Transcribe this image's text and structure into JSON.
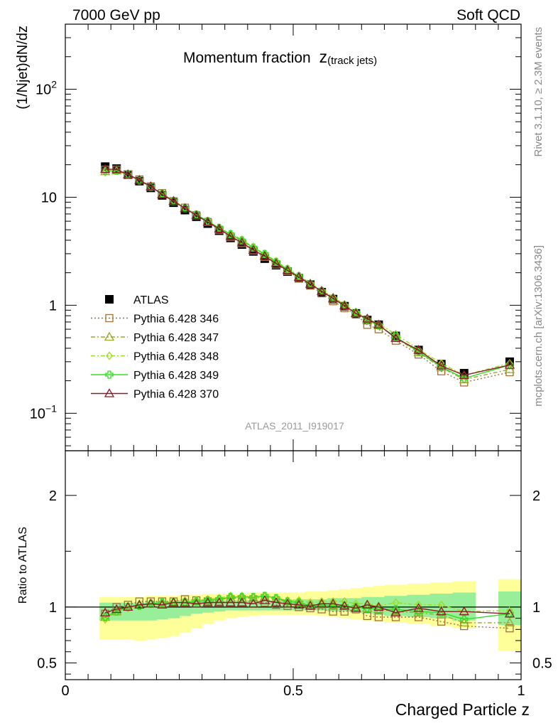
{
  "header": {
    "left": "7000 GeV pp",
    "right": "Soft QCD",
    "side_top": "Rivet 3.1.10, ≥ 2.3M events",
    "side_bottom": "mcplots.cern.ch [arXiv:1306.3436]"
  },
  "chart_data": [
    {
      "type": "scatter",
      "title": "Momentum fraction",
      "title_sub": "z",
      "title_subscript": "(track jets)",
      "ylabel": "(1/Njet)dN/dz",
      "ylog": true,
      "ylim": [
        0.045,
        400
      ],
      "xlim": [
        0,
        1.0
      ],
      "ytick_labels": [
        "10",
        "2",
        "10",
        "1",
        "10",
        "−1"
      ],
      "yticks": [
        {
          "base": "10",
          "exp": "2"
        },
        {
          "base": "10",
          "exp": ""
        },
        {
          "base": "1",
          "exp": ""
        },
        {
          "base": "10",
          "exp": "−1"
        }
      ],
      "watermark": "ATLAS_2011_I919017",
      "legend_position": "middle-left",
      "x": [
        0.0875,
        0.1125,
        0.1375,
        0.1625,
        0.1875,
        0.2125,
        0.2375,
        0.2625,
        0.2875,
        0.3125,
        0.3375,
        0.3625,
        0.3875,
        0.4125,
        0.4375,
        0.4625,
        0.4875,
        0.5125,
        0.5375,
        0.5625,
        0.5875,
        0.6125,
        0.6375,
        0.6625,
        0.6875,
        0.725,
        0.775,
        0.825,
        0.875,
        0.975
      ],
      "series": [
        {
          "name": "ATLAS",
          "color": "#000000",
          "marker": "square-filled",
          "line": "none",
          "values": [
            19.2,
            18.4,
            16.2,
            14.1,
            12.2,
            10.4,
            8.9,
            7.6,
            6.6,
            5.7,
            4.9,
            4.2,
            3.65,
            3.15,
            2.7,
            2.35,
            2.05,
            1.78,
            1.55,
            1.32,
            1.14,
            0.98,
            0.84,
            0.73,
            0.66,
            0.52,
            0.385,
            0.285,
            0.235,
            0.3
          ]
        },
        {
          "name": "Pythia 6.428 346",
          "color": "#a0703a",
          "marker": "square-open",
          "line": "dotted",
          "values": [
            18.0,
            18.0,
            16.3,
            14.6,
            12.6,
            10.9,
            9.2,
            8.0,
            6.8,
            5.9,
            5.0,
            4.3,
            3.75,
            3.22,
            2.8,
            2.38,
            2.07,
            1.78,
            1.52,
            1.29,
            1.09,
            0.94,
            0.82,
            0.66,
            0.6,
            0.47,
            0.35,
            0.245,
            0.193,
            0.24
          ]
        },
        {
          "name": "Pythia 6.428 347",
          "color": "#9aa826",
          "marker": "triangle-open",
          "line": "dashdot",
          "values": [
            17.3,
            17.6,
            16.3,
            14.4,
            12.5,
            10.7,
            9.2,
            7.9,
            6.8,
            5.9,
            5.1,
            4.5,
            3.95,
            3.4,
            2.95,
            2.5,
            2.15,
            1.85,
            1.58,
            1.35,
            1.15,
            0.99,
            0.85,
            0.73,
            0.65,
            0.5,
            0.365,
            0.265,
            0.205,
            0.255
          ]
        },
        {
          "name": "Pythia 6.428 348",
          "color": "#a0d820",
          "marker": "diamond-open",
          "line": "dashdot",
          "values": [
            17.0,
            17.6,
            16.2,
            14.3,
            12.5,
            10.8,
            9.3,
            8.0,
            6.9,
            6.0,
            5.2,
            4.6,
            4.05,
            3.45,
            3.0,
            2.55,
            2.18,
            1.88,
            1.6,
            1.38,
            1.19,
            1.02,
            0.87,
            0.75,
            0.67,
            0.54,
            0.39,
            0.29,
            0.225,
            0.29
          ]
        },
        {
          "name": "Pythia 6.428 349",
          "color": "#33dd22",
          "marker": "cross-open",
          "line": "solid",
          "values": [
            17.5,
            17.6,
            16.2,
            14.3,
            12.5,
            10.8,
            9.2,
            7.9,
            6.9,
            6.0,
            5.2,
            4.55,
            3.98,
            3.42,
            2.98,
            2.52,
            2.15,
            1.85,
            1.57,
            1.35,
            1.15,
            0.99,
            0.85,
            0.73,
            0.65,
            0.51,
            0.37,
            0.27,
            0.21,
            0.28
          ]
        },
        {
          "name": "Pythia 6.428 370",
          "color": "#8b1a2a",
          "marker": "triangle-open",
          "line": "solid",
          "values": [
            18.2,
            18.1,
            16.2,
            14.4,
            12.6,
            10.6,
            9.2,
            7.9,
            6.8,
            5.9,
            5.1,
            4.35,
            3.8,
            3.25,
            2.85,
            2.43,
            2.1,
            1.82,
            1.57,
            1.35,
            1.16,
            0.99,
            0.84,
            0.75,
            0.66,
            0.495,
            0.385,
            0.275,
            0.225,
            0.28
          ]
        }
      ]
    },
    {
      "type": "line",
      "ylabel": "Ratio to ATLAS",
      "xlabel": "Charged Particle z",
      "ylim": [
        0.35,
        2.4
      ],
      "xlim": [
        0,
        1.0
      ],
      "ytick_labels": [
        "0.5",
        "1",
        "2"
      ],
      "xtick_labels": [
        "0",
        "0.5",
        "1"
      ],
      "reference_line": 1.0,
      "bands": [
        {
          "name": "total uncertainty",
          "color": "#ffff99",
          "edges": [
            0.075,
            0.1,
            0.125,
            0.15,
            0.175,
            0.2,
            0.225,
            0.25,
            0.275,
            0.3,
            0.325,
            0.35,
            0.375,
            0.4,
            0.425,
            0.45,
            0.475,
            0.5,
            0.525,
            0.55,
            0.575,
            0.6,
            0.625,
            0.65,
            0.675,
            0.7,
            0.75,
            0.8,
            0.85,
            0.9,
            0.95,
            1.0
          ],
          "lo": [
            0.71,
            0.71,
            0.71,
            0.7,
            0.71,
            0.72,
            0.74,
            0.77,
            0.81,
            0.85,
            0.88,
            0.9,
            0.91,
            0.92,
            0.93,
            0.93,
            0.93,
            0.93,
            0.93,
            0.92,
            0.91,
            0.9,
            0.89,
            0.88,
            0.87,
            0.86,
            0.85,
            0.83,
            0.81,
            null,
            0.61
          ],
          "hi": [
            1.09,
            1.09,
            1.09,
            1.09,
            1.1,
            1.1,
            1.1,
            1.11,
            1.11,
            1.12,
            1.12,
            1.12,
            1.12,
            1.13,
            1.13,
            1.13,
            1.13,
            1.13,
            1.14,
            1.14,
            1.15,
            1.16,
            1.17,
            1.18,
            1.19,
            1.2,
            1.21,
            1.22,
            1.23,
            null,
            1.25
          ]
        },
        {
          "name": "stat uncertainty",
          "color": "#99ee99",
          "edges": [
            0.075,
            0.1,
            0.125,
            0.15,
            0.175,
            0.2,
            0.225,
            0.25,
            0.275,
            0.3,
            0.325,
            0.35,
            0.375,
            0.4,
            0.425,
            0.45,
            0.475,
            0.5,
            0.525,
            0.55,
            0.575,
            0.6,
            0.625,
            0.65,
            0.675,
            0.7,
            0.75,
            0.8,
            0.85,
            0.9,
            0.95,
            1.0
          ],
          "lo": [
            0.88,
            0.88,
            0.88,
            0.88,
            0.88,
            0.89,
            0.9,
            0.92,
            0.94,
            0.95,
            0.96,
            0.97,
            0.97,
            0.97,
            0.97,
            0.97,
            0.97,
            0.97,
            0.97,
            0.97,
            0.96,
            0.96,
            0.95,
            0.94,
            0.93,
            0.92,
            0.91,
            0.9,
            0.88,
            null,
            0.84
          ],
          "hi": [
            1.04,
            1.04,
            1.04,
            1.04,
            1.05,
            1.05,
            1.05,
            1.06,
            1.06,
            1.06,
            1.06,
            1.06,
            1.06,
            1.06,
            1.06,
            1.06,
            1.06,
            1.07,
            1.07,
            1.07,
            1.08,
            1.08,
            1.08,
            1.09,
            1.09,
            1.1,
            1.11,
            1.12,
            1.13,
            null,
            1.14
          ]
        }
      ],
      "x": [
        0.0875,
        0.1125,
        0.1375,
        0.1625,
        0.1875,
        0.2125,
        0.2375,
        0.2625,
        0.2875,
        0.3125,
        0.3375,
        0.3625,
        0.3875,
        0.4125,
        0.4375,
        0.4625,
        0.4875,
        0.5125,
        0.5375,
        0.5625,
        0.5875,
        0.6125,
        0.6375,
        0.6625,
        0.6875,
        0.725,
        0.775,
        0.825,
        0.875,
        0.975
      ],
      "series": [
        {
          "name": "Pythia 6.428 346",
          "color": "#a0703a",
          "marker": "square-open",
          "line": "dotted",
          "values": [
            0.94,
            1.0,
            1.02,
            1.05,
            1.05,
            1.05,
            1.05,
            1.07,
            1.06,
            1.05,
            1.05,
            1.04,
            1.04,
            1.03,
            1.04,
            1.02,
            1.01,
            1.0,
            0.99,
            0.98,
            0.96,
            0.96,
            0.98,
            0.92,
            0.91,
            0.91,
            0.91,
            0.87,
            0.83,
            0.81
          ]
        },
        {
          "name": "Pythia 6.428 347",
          "color": "#9aa826",
          "marker": "triangle-open",
          "line": "dashdot",
          "values": [
            0.91,
            0.96,
            1.0,
            1.02,
            1.03,
            1.03,
            1.04,
            1.04,
            1.05,
            1.06,
            1.07,
            1.08,
            1.08,
            1.08,
            1.09,
            1.07,
            1.05,
            1.04,
            1.02,
            1.02,
            1.01,
            1.01,
            1.0,
            0.99,
            0.98,
            0.96,
            0.95,
            0.93,
            0.86,
            0.86
          ]
        },
        {
          "name": "Pythia 6.428 348",
          "color": "#a0d820",
          "marker": "diamond-open",
          "line": "dashdot",
          "values": [
            0.89,
            0.96,
            0.99,
            1.01,
            1.03,
            1.04,
            1.05,
            1.06,
            1.06,
            1.07,
            1.08,
            1.1,
            1.1,
            1.09,
            1.1,
            1.08,
            1.06,
            1.06,
            1.04,
            1.05,
            1.05,
            1.05,
            1.03,
            1.03,
            1.01,
            1.04,
            1.02,
            1.02,
            0.96,
            0.97
          ]
        },
        {
          "name": "Pythia 6.428 349",
          "color": "#33dd22",
          "marker": "cross-open",
          "line": "solid",
          "values": [
            0.91,
            0.96,
            1.0,
            1.01,
            1.03,
            1.04,
            1.04,
            1.04,
            1.05,
            1.06,
            1.07,
            1.09,
            1.09,
            1.09,
            1.1,
            1.08,
            1.05,
            1.04,
            1.01,
            1.02,
            1.01,
            1.01,
            1.0,
            0.99,
            0.98,
            0.98,
            0.96,
            0.95,
            0.89,
            0.94
          ]
        },
        {
          "name": "Pythia 6.428 370",
          "color": "#8b1a2a",
          "marker": "triangle-open",
          "line": "solid",
          "values": [
            0.95,
            0.98,
            1.0,
            1.02,
            1.03,
            1.02,
            1.04,
            1.04,
            1.03,
            1.04,
            1.04,
            1.04,
            1.04,
            1.03,
            1.06,
            1.04,
            1.03,
            1.02,
            1.01,
            1.03,
            1.03,
            1.01,
            0.99,
            1.02,
            1.0,
            0.95,
            0.99,
            0.96,
            0.96,
            0.94
          ]
        }
      ]
    }
  ]
}
